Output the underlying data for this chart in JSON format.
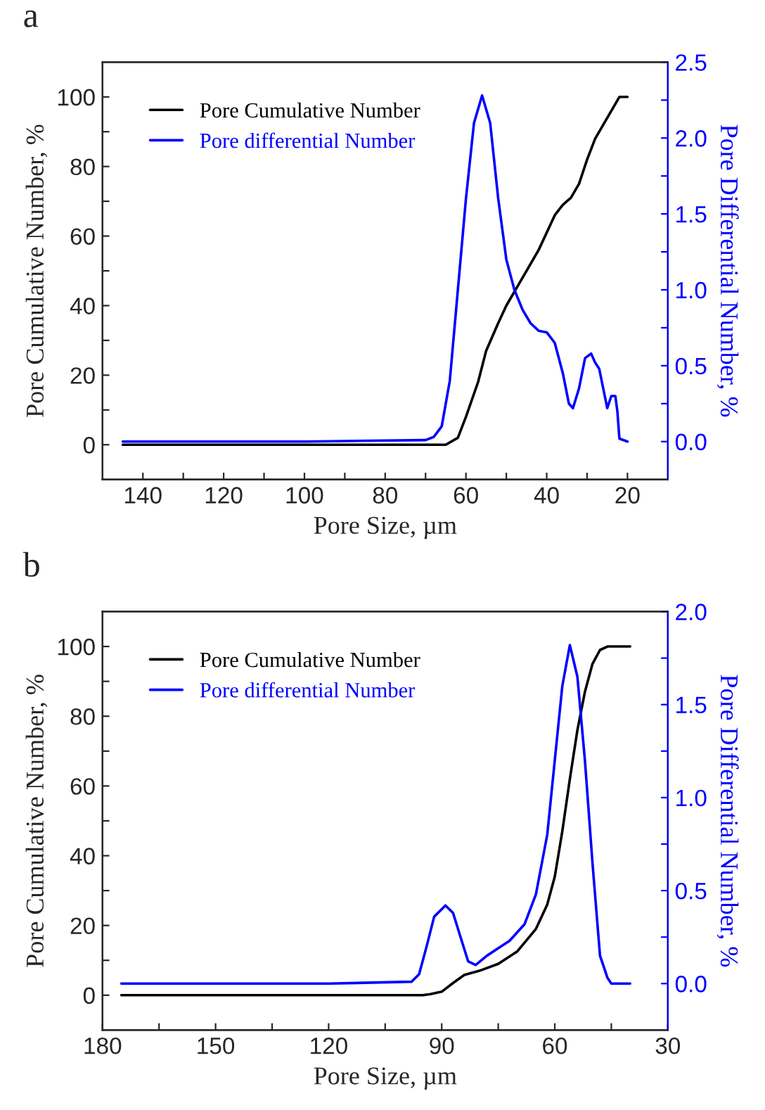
{
  "chart_data": [
    {
      "type": "line",
      "title": "a",
      "xlabel": "Pore Size, µm",
      "ylabel": "Pore Cumulative Number, %",
      "y2label": "Pore Differential Number, %",
      "legend": "top left",
      "grid": false,
      "xlim": [
        150,
        10
      ],
      "xticks": [
        140,
        {
          "value": 130,
          "label": null
        },
        120,
        {
          "value": 110,
          "label": null
        },
        100,
        {
          "value": 90,
          "label": null
        },
        80,
        {
          "value": 70,
          "label": null
        },
        60,
        {
          "value": 50,
          "label": null
        },
        40,
        {
          "value": 30,
          "label": null
        },
        20
      ],
      "ylim": [
        -10,
        110
      ],
      "yticks": [
        0,
        {
          "value": 10,
          "label": null
        },
        20,
        {
          "value": 30,
          "label": null
        },
        40,
        {
          "value": 50,
          "label": null
        },
        60,
        {
          "value": 70,
          "label": null
        },
        80,
        {
          "value": 90,
          "label": null
        },
        100
      ],
      "y2lim": [
        -0.25,
        2.5
      ],
      "y2ticks": [
        {
          "value": 0,
          "label": "0.0"
        },
        {
          "value": 0.25,
          "label": null
        },
        0.5,
        {
          "value": 0.75,
          "label": null
        },
        {
          "value": 1,
          "label": "1.0"
        },
        {
          "value": 1.25,
          "label": null
        },
        1.5,
        {
          "value": 1.75,
          "label": null
        },
        {
          "value": 2,
          "label": "2.0"
        },
        {
          "value": 2.25,
          "label": null
        },
        2.5
      ],
      "series": [
        {
          "name": "Pore Cumulative Number",
          "color": "#000000",
          "x": [
            145,
            100,
            70,
            65,
            62,
            60,
            57,
            55,
            52,
            50,
            47,
            45,
            42,
            40,
            38,
            36,
            34,
            32,
            30,
            28,
            26,
            24,
            22,
            20
          ],
          "values": [
            0,
            0,
            0,
            0,
            2,
            8,
            18,
            27,
            35,
            40,
            46,
            50,
            56,
            61,
            66,
            69,
            71,
            75,
            82,
            88,
            92,
            96,
            100,
            100
          ]
        },
        {
          "name": "Pore differential Number",
          "color": "#0000ff",
          "axis": "y2",
          "x": [
            145,
            100,
            70,
            68,
            66,
            64,
            62,
            60,
            58,
            56,
            54,
            52,
            50,
            48,
            46,
            44,
            42,
            40,
            38,
            36,
            34.5,
            33.5,
            32,
            30.5,
            29,
            28,
            27,
            26,
            25,
            24,
            23,
            22.5,
            22,
            20
          ],
          "values": [
            0,
            0,
            0.01,
            0.03,
            0.1,
            0.4,
            1.0,
            1.6,
            2.1,
            2.28,
            2.1,
            1.6,
            1.2,
            1.0,
            0.87,
            0.78,
            0.73,
            0.72,
            0.65,
            0.45,
            0.25,
            0.22,
            0.35,
            0.55,
            0.58,
            0.52,
            0.48,
            0.35,
            0.22,
            0.3,
            0.3,
            0.2,
            0.02,
            0
          ]
        }
      ]
    },
    {
      "type": "line",
      "title": "b",
      "xlabel": "Pore Size, µm",
      "ylabel": "Pore Cumulative Number, %",
      "y2label": "Pore Differential Number, %",
      "legend": "top left",
      "grid": false,
      "xlim": [
        180,
        30
      ],
      "xticks": [
        180,
        {
          "value": 165,
          "label": null
        },
        150,
        {
          "value": 135,
          "label": null
        },
        120,
        {
          "value": 105,
          "label": null
        },
        90,
        {
          "value": 75,
          "label": null
        },
        60,
        {
          "value": 45,
          "label": null
        },
        30
      ],
      "ylim": [
        -10,
        110
      ],
      "yticks": [
        0,
        {
          "value": 10,
          "label": null
        },
        20,
        {
          "value": 30,
          "label": null
        },
        40,
        {
          "value": 50,
          "label": null
        },
        60,
        {
          "value": 70,
          "label": null
        },
        80,
        {
          "value": 90,
          "label": null
        },
        100
      ],
      "y2lim": [
        -0.25,
        2.0
      ],
      "y2ticks": [
        {
          "value": 0,
          "label": "0.0"
        },
        {
          "value": 0.25,
          "label": null
        },
        0.5,
        {
          "value": 0.75,
          "label": null
        },
        {
          "value": 1,
          "label": "1.0"
        },
        {
          "value": 1.25,
          "label": null
        },
        1.5,
        {
          "value": 1.75,
          "label": null
        },
        {
          "value": 2,
          "label": "2.0"
        }
      ],
      "series": [
        {
          "name": "Pore Cumulative Number",
          "color": "#000000",
          "x": [
            175,
            120,
            95,
            93,
            90,
            87,
            84,
            80,
            75,
            70,
            65,
            62,
            60,
            58,
            56,
            54,
            52,
            50,
            48,
            46,
            40
          ],
          "values": [
            0,
            0,
            0,
            0.3,
            1,
            3.5,
            5.8,
            7,
            9,
            12.5,
            19,
            26,
            34,
            47,
            62,
            76,
            87,
            95,
            99,
            100,
            100
          ]
        },
        {
          "name": "Pore differential Number",
          "color": "#0000ff",
          "axis": "y2",
          "x": [
            175,
            120,
            98,
            96,
            94,
            92,
            89,
            87,
            85,
            83,
            81,
            78,
            75,
            72,
            68,
            65,
            62,
            60,
            58,
            56,
            54,
            52,
            50,
            48,
            46,
            45,
            40
          ],
          "values": [
            0,
            0,
            0.01,
            0.05,
            0.2,
            0.36,
            0.42,
            0.38,
            0.25,
            0.12,
            0.1,
            0.15,
            0.19,
            0.23,
            0.32,
            0.48,
            0.8,
            1.2,
            1.6,
            1.82,
            1.65,
            1.2,
            0.65,
            0.15,
            0.03,
            0,
            0
          ]
        }
      ]
    }
  ]
}
